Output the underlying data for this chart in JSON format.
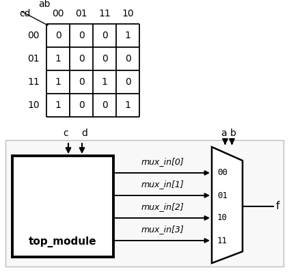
{
  "bg_color": "#ffffff",
  "kmap": {
    "col_headers": [
      "00",
      "01",
      "11",
      "10"
    ],
    "row_headers": [
      "00",
      "01",
      "11",
      "10"
    ],
    "values": [
      [
        0,
        0,
        0,
        1
      ],
      [
        1,
        0,
        0,
        0
      ],
      [
        1,
        0,
        1,
        0
      ],
      [
        1,
        0,
        0,
        1
      ]
    ],
    "grid_color": "#000000",
    "text_color": "#000000"
  },
  "circuit": {
    "module_label": "top_module",
    "mux_labels": [
      "mux_in[0]",
      "mux_in[1]",
      "mux_in[2]",
      "mux_in[3]"
    ],
    "mux_sel_labels": [
      "00",
      "01",
      "10",
      "11"
    ],
    "output_label": "f",
    "input_labels": [
      "c",
      "d"
    ],
    "ab_label": "a b",
    "line_color": "#000000",
    "text_color": "#000000"
  }
}
